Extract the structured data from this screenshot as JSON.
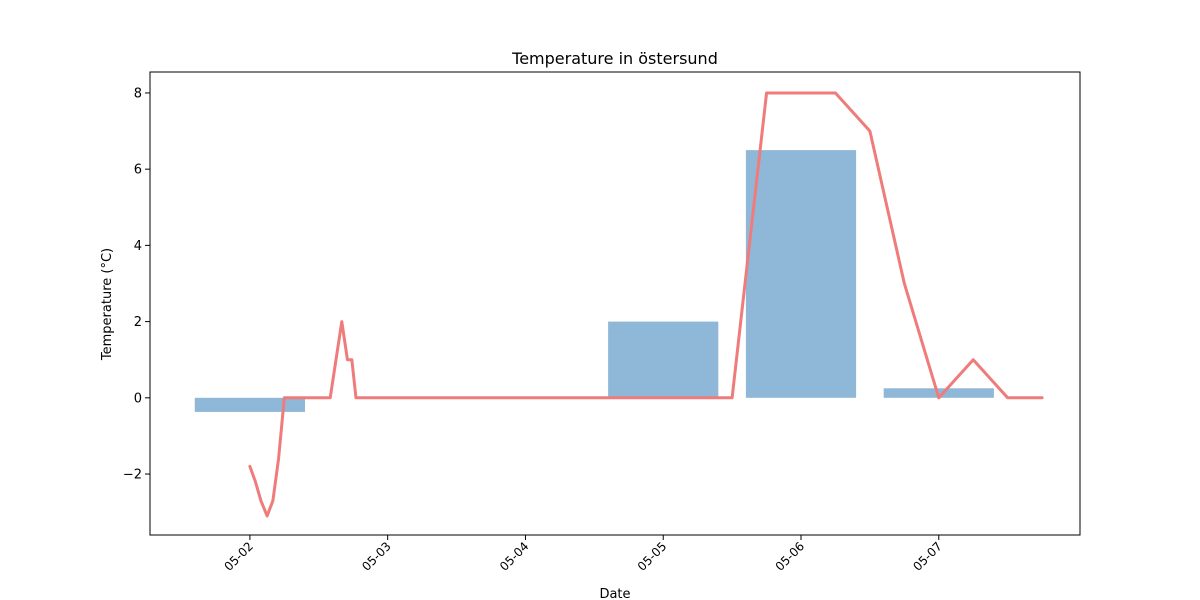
{
  "chart_data": {
    "type": "bar+line",
    "title": "Temperature in östersund",
    "xlabel": "Date",
    "ylabel": "Temperature (°C)",
    "xlim": [
      -0.725,
      6.025
    ],
    "ylim": [
      -3.6,
      8.55
    ],
    "x_ticks": [
      {
        "pos": 0,
        "label": "05-02"
      },
      {
        "pos": 1,
        "label": "05-03"
      },
      {
        "pos": 2,
        "label": "05-04"
      },
      {
        "pos": 3,
        "label": "05-05"
      },
      {
        "pos": 4,
        "label": "05-06"
      },
      {
        "pos": 5,
        "label": "05-07"
      }
    ],
    "y_ticks": [
      {
        "value": -2,
        "label": "−2"
      },
      {
        "value": 0,
        "label": "0"
      },
      {
        "value": 2,
        "label": "2"
      },
      {
        "value": 4,
        "label": "4"
      },
      {
        "value": 6,
        "label": "6"
      },
      {
        "value": 8,
        "label": "8"
      }
    ],
    "bars": {
      "color": "#8fb8d8",
      "width_days": 0.8,
      "points": [
        {
          "x": 0,
          "value": -0.37
        },
        {
          "x": 1,
          "value": 0
        },
        {
          "x": 2,
          "value": 0
        },
        {
          "x": 3,
          "value": 2.0
        },
        {
          "x": 4,
          "value": 6.5
        },
        {
          "x": 5,
          "value": 0.25
        }
      ]
    },
    "line": {
      "color": "#ef7b7b",
      "points": [
        {
          "x": 0.0,
          "y": -1.8
        },
        {
          "x": 0.04,
          "y": -2.2
        },
        {
          "x": 0.08,
          "y": -2.7
        },
        {
          "x": 0.125,
          "y": -3.1
        },
        {
          "x": 0.167,
          "y": -2.7
        },
        {
          "x": 0.208,
          "y": -1.6
        },
        {
          "x": 0.25,
          "y": 0.0
        },
        {
          "x": 0.583,
          "y": 0.0
        },
        {
          "x": 0.667,
          "y": 2.0
        },
        {
          "x": 0.708,
          "y": 1.0
        },
        {
          "x": 0.74,
          "y": 1.0
        },
        {
          "x": 0.77,
          "y": 0.0
        },
        {
          "x": 5.0,
          "y": 0.0
        },
        {
          "x": 3.5,
          "y": 0.0
        },
        {
          "x": 3.75,
          "y": 8.0
        },
        {
          "x": 4.25,
          "y": 8.0
        },
        {
          "x": 4.5,
          "y": 7.0
        },
        {
          "x": 4.75,
          "y": 3.0
        },
        {
          "x": 5.0,
          "y": 0.0
        },
        {
          "x": 5.25,
          "y": 1.0
        },
        {
          "x": 5.5,
          "y": 0.0
        },
        {
          "x": 5.75,
          "y": 0.0
        }
      ]
    }
  }
}
